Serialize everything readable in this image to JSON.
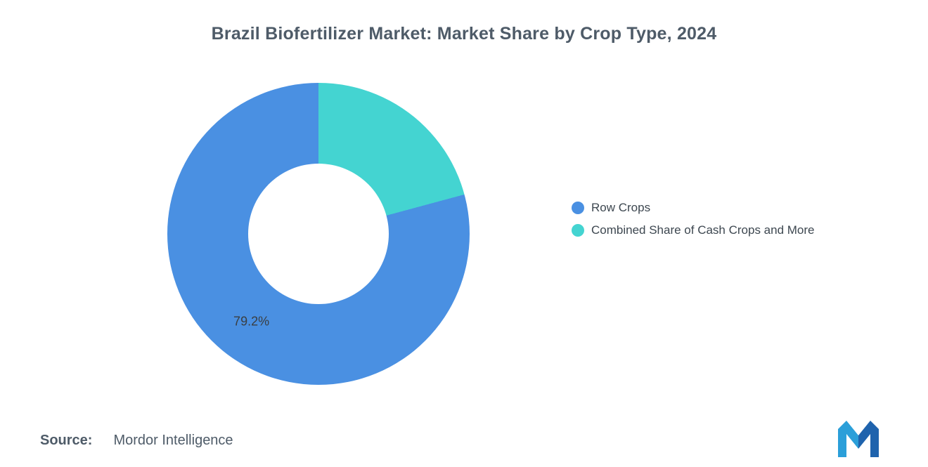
{
  "title": "Brazil Biofertilizer Market: Market Share by Crop Type, 2024",
  "chart_data": {
    "type": "pie",
    "subtype": "donut",
    "title": "Brazil Biofertilizer Market: Market Share by Crop Type, 2024",
    "total": 100,
    "start_angle_deg": 0,
    "direction": "clockwise",
    "legend_position": "right",
    "slices": [
      {
        "label": "Combined Share of Cash Crops and More",
        "value": 20.8,
        "color": "#44D4D1",
        "data_label": ""
      },
      {
        "label": "Row Crops",
        "value": 79.2,
        "color": "#4A90E2",
        "data_label": "79.2%"
      }
    ]
  },
  "legend": {
    "items": [
      {
        "label": "Row Crops",
        "color": "#4A90E2"
      },
      {
        "label": "Combined Share of Cash Crops and More",
        "color": "#44D4D1"
      }
    ]
  },
  "source": {
    "label": "Source:",
    "value": "Mordor Intelligence"
  },
  "logo": {
    "name": "mordor-intelligence-logo",
    "colors": [
      "#2B9FD9",
      "#1F63AD"
    ]
  }
}
